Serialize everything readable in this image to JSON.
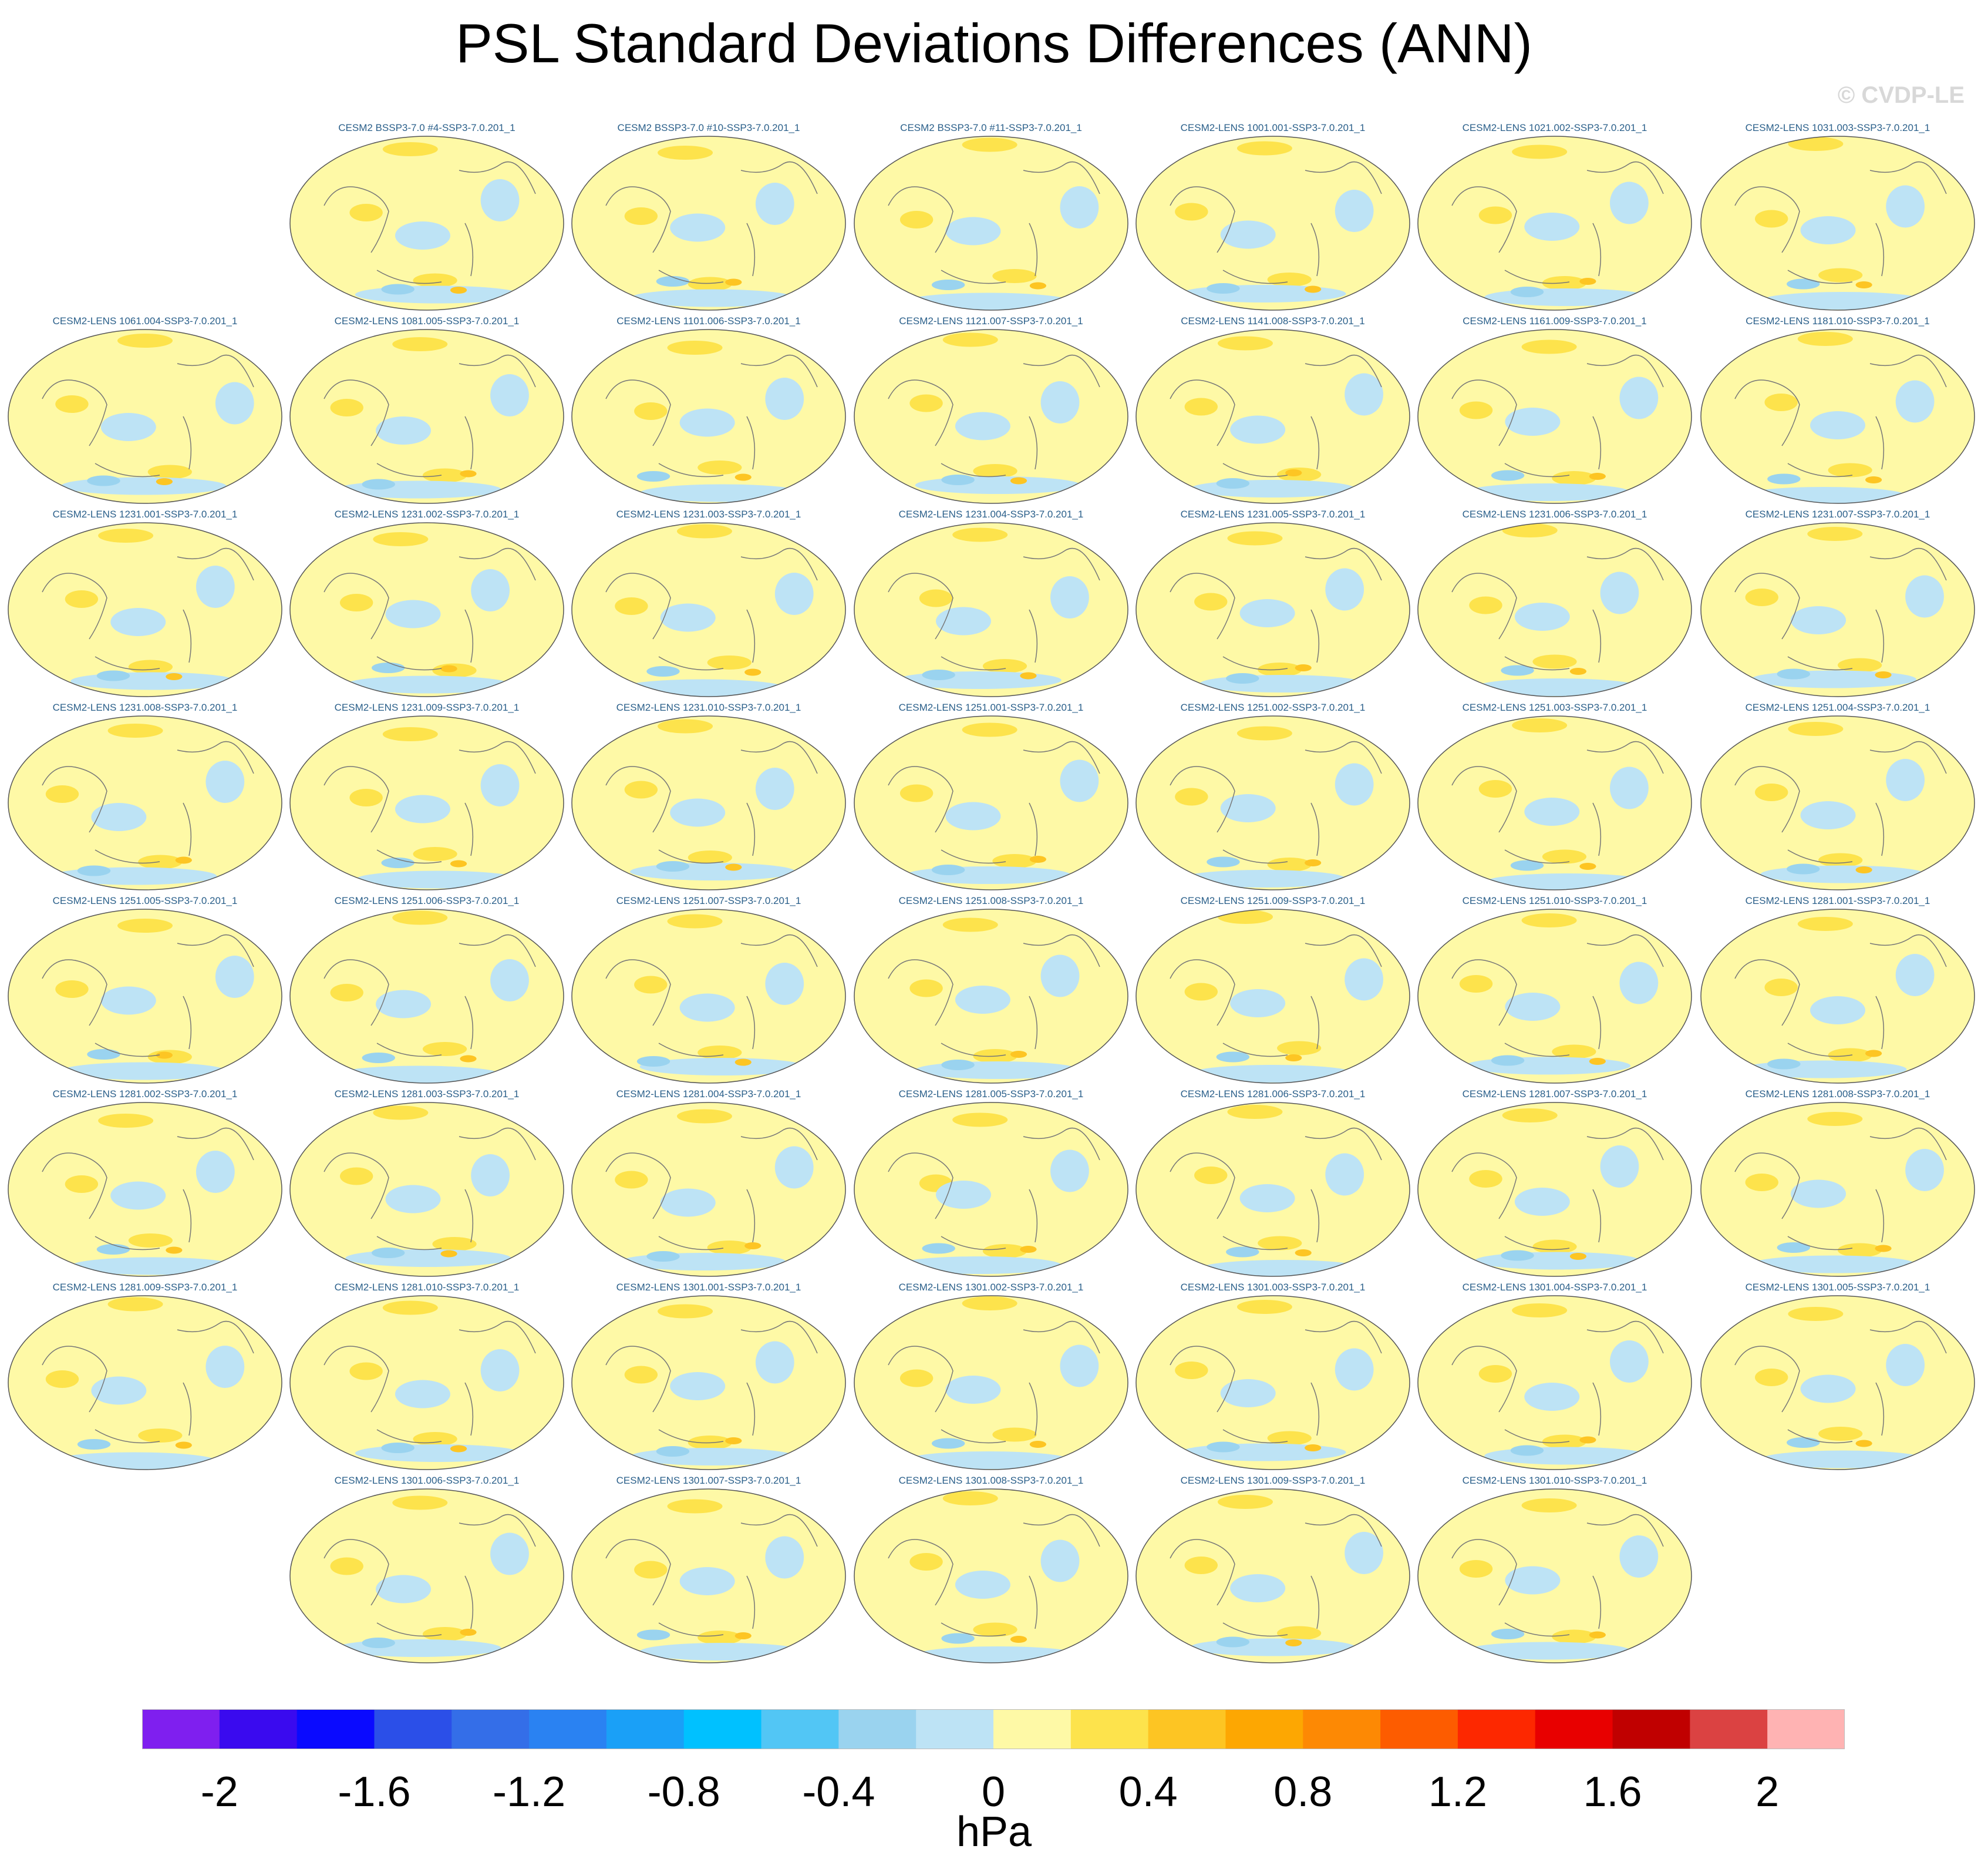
{
  "title": "PSL Standard Deviations Differences (ANN)",
  "watermark": "© CVDP-LE",
  "panels": [
    "",
    "CESM2 BSSP3-7.0 #4-SSP3-7.0.201_1",
    "CESM2 BSSP3-7.0 #10-SSP3-7.0.201_1",
    "CESM2 BSSP3-7.0 #11-SSP3-7.0.201_1",
    "CESM2-LENS 1001.001-SSP3-7.0.201_1",
    "CESM2-LENS 1021.002-SSP3-7.0.201_1",
    "CESM2-LENS 1031.003-SSP3-7.0.201_1",
    "CESM2-LENS 1061.004-SSP3-7.0.201_1",
    "CESM2-LENS 1081.005-SSP3-7.0.201_1",
    "CESM2-LENS 1101.006-SSP3-7.0.201_1",
    "CESM2-LENS 1121.007-SSP3-7.0.201_1",
    "CESM2-LENS 1141.008-SSP3-7.0.201_1",
    "CESM2-LENS 1161.009-SSP3-7.0.201_1",
    "CESM2-LENS 1181.010-SSP3-7.0.201_1",
    "CESM2-LENS 1231.001-SSP3-7.0.201_1",
    "CESM2-LENS 1231.002-SSP3-7.0.201_1",
    "CESM2-LENS 1231.003-SSP3-7.0.201_1",
    "CESM2-LENS 1231.004-SSP3-7.0.201_1",
    "CESM2-LENS 1231.005-SSP3-7.0.201_1",
    "CESM2-LENS 1231.006-SSP3-7.0.201_1",
    "CESM2-LENS 1231.007-SSP3-7.0.201_1",
    "CESM2-LENS 1231.008-SSP3-7.0.201_1",
    "CESM2-LENS 1231.009-SSP3-7.0.201_1",
    "CESM2-LENS 1231.010-SSP3-7.0.201_1",
    "CESM2-LENS 1251.001-SSP3-7.0.201_1",
    "CESM2-LENS 1251.002-SSP3-7.0.201_1",
    "CESM2-LENS 1251.003-SSP3-7.0.201_1",
    "CESM2-LENS 1251.004-SSP3-7.0.201_1",
    "CESM2-LENS 1251.005-SSP3-7.0.201_1",
    "CESM2-LENS 1251.006-SSP3-7.0.201_1",
    "CESM2-LENS 1251.007-SSP3-7.0.201_1",
    "CESM2-LENS 1251.008-SSP3-7.0.201_1",
    "CESM2-LENS 1251.009-SSP3-7.0.201_1",
    "CESM2-LENS 1251.010-SSP3-7.0.201_1",
    "CESM2-LENS 1281.001-SSP3-7.0.201_1",
    "CESM2-LENS 1281.002-SSP3-7.0.201_1",
    "CESM2-LENS 1281.003-SSP3-7.0.201_1",
    "CESM2-LENS 1281.004-SSP3-7.0.201_1",
    "CESM2-LENS 1281.005-SSP3-7.0.201_1",
    "CESM2-LENS 1281.006-SSP3-7.0.201_1",
    "CESM2-LENS 1281.007-SSP3-7.0.201_1",
    "CESM2-LENS 1281.008-SSP3-7.0.201_1",
    "CESM2-LENS 1281.009-SSP3-7.0.201_1",
    "CESM2-LENS 1281.010-SSP3-7.0.201_1",
    "CESM2-LENS 1301.001-SSP3-7.0.201_1",
    "CESM2-LENS 1301.002-SSP3-7.0.201_1",
    "CESM2-LENS 1301.003-SSP3-7.0.201_1",
    "CESM2-LENS 1301.004-SSP3-7.0.201_1",
    "CESM2-LENS 1301.005-SSP3-7.0.201_1",
    "",
    "CESM2-LENS 1301.006-SSP3-7.0.201_1",
    "CESM2-LENS 1301.007-SSP3-7.0.201_1",
    "CESM2-LENS 1301.008-SSP3-7.0.201_1",
    "CESM2-LENS 1301.009-SSP3-7.0.201_1",
    "CESM2-LENS 1301.010-SSP3-7.0.201_1",
    ""
  ],
  "colorbar": {
    "colors": [
      "#7f1fef",
      "#3a0aef",
      "#0a0aff",
      "#2b4fe8",
      "#346ee8",
      "#2a82f2",
      "#1aa0f7",
      "#00c1ff",
      "#52c6f5",
      "#9ad3ef",
      "#bde3f5",
      "#fef9a6",
      "#fde34c",
      "#fdc523",
      "#fda702",
      "#fd8904",
      "#fd5c00",
      "#fd2800",
      "#e80000",
      "#c00000",
      "#db4242",
      "#ffb3b3"
    ],
    "tick_labels": [
      "-2",
      "-1.6",
      "-1.2",
      "-0.8",
      "-0.4",
      "0",
      "0.4",
      "0.8",
      "1.2",
      "1.6",
      "2"
    ],
    "units": "hPa"
  }
}
